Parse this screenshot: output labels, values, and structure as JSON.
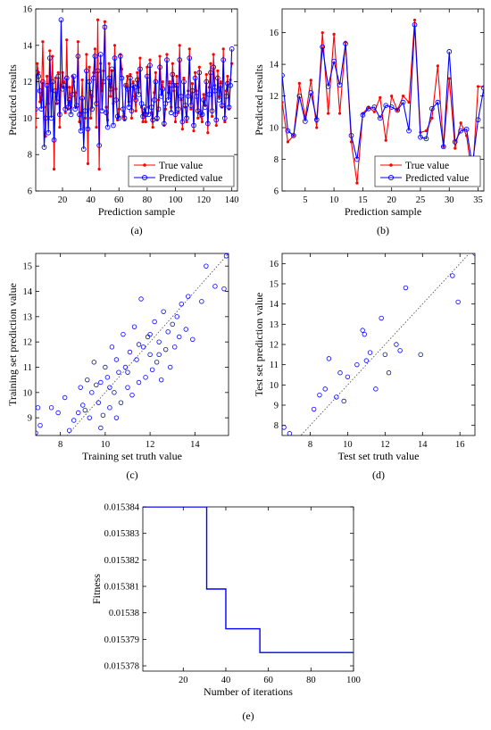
{
  "chart_data": [
    {
      "id": "a",
      "type": "line",
      "panel_label": "(a)",
      "xlabel": "Prediction sample",
      "ylabel": "Predicted results",
      "xlim": [
        1,
        144
      ],
      "ylim": [
        6,
        16
      ],
      "xticks": [
        20,
        40,
        60,
        80,
        100,
        120,
        140
      ],
      "yticks": [
        6,
        8,
        10,
        12,
        14,
        16
      ],
      "legend": "bottom-right",
      "series": [
        {
          "name": "True value",
          "color": "#ff0000",
          "marker": "dot",
          "values": [
            9.5,
            13.0,
            12.5,
            10.9,
            11.0,
            14.2,
            10.6,
            9.0,
            12.3,
            10.8,
            13.7,
            11.5,
            13.4,
            7.2,
            12.2,
            10.8,
            12.5,
            9.5,
            11.8,
            12.5,
            12.0,
            10.3,
            14.3,
            10.5,
            11.7,
            10.6,
            12.3,
            12.0,
            11.4,
            10.6,
            14.2,
            9.8,
            10.3,
            12.1,
            9.5,
            10.0,
            13.5,
            7.5,
            12.8,
            10.0,
            11.2,
            12.5,
            13.8,
            9.5,
            15.4,
            7.2,
            13.0,
            11.5,
            12.6,
            15.3,
            10.6,
            9.9,
            13.0,
            11.2,
            12.6,
            10.8,
            14.0,
            11.6,
            9.9,
            10.5,
            13.5,
            12.7,
            10.1,
            9.9,
            11.8,
            12.3,
            10.9,
            12.4,
            10.0,
            12.0,
            11.2,
            10.4,
            12.5,
            11.7,
            13.3,
            10.6,
            9.8,
            10.3,
            9.8,
            12.8,
            10.6,
            13.2,
            10.3,
            9.5,
            11.4,
            12.5,
            9.9,
            11.0,
            13.4,
            11.6,
            12.0,
            9.6,
            10.5,
            13.5,
            11.4,
            12.0,
            10.6,
            13.0,
            11.5,
            9.8,
            12.3,
            10.3,
            14.0,
            11.0,
            9.4,
            12.2,
            10.6,
            9.8,
            11.5,
            13.8,
            10.5,
            11.9,
            9.3,
            12.5,
            11.5,
            10.0,
            12.8,
            10.1,
            9.8,
            11.3,
            10.7,
            12.4,
            9.2,
            11.7,
            13.0,
            10.1,
            13.5,
            11.8,
            9.6,
            12.6,
            11.2,
            12.0,
            10.6,
            13.8,
            9.8,
            11.5,
            12.3,
            10.5,
            12.1,
            13.0
          ]
        },
        {
          "name": "Predicted value",
          "color": "#0000ff",
          "marker": "circle",
          "values": [
            10.5,
            12.5,
            12.3,
            11.5,
            10.5,
            12.0,
            8.4,
            10.0,
            11.8,
            9.2,
            13.3,
            10.0,
            12.0,
            8.8,
            11.5,
            10.9,
            12.3,
            10.2,
            15.4,
            11.6,
            11.8,
            10.5,
            12.2,
            10.6,
            11.0,
            10.2,
            11.3,
            12.3,
            10.5,
            10.7,
            13.4,
            10.2,
            9.3,
            11.1,
            8.3,
            10.4,
            12.6,
            9.4,
            12.0,
            11.4,
            10.5,
            12.2,
            13.4,
            10.8,
            12.6,
            8.5,
            13.5,
            10.4,
            12.0,
            15.0,
            10.3,
            9.5,
            12.2,
            11.6,
            12.7,
            9.6,
            13.3,
            11.0,
            10.1,
            10.0,
            13.4,
            12.2,
            10.5,
            10.0,
            11.8,
            11.6,
            10.6,
            12.2,
            10.4,
            11.8,
            11.7,
            11.0,
            12.1,
            11.3,
            12.7,
            10.8,
            10.1,
            10.6,
            10.2,
            12.3,
            10.2,
            12.9,
            10.6,
            9.9,
            11.0,
            12.0,
            10.0,
            10.5,
            12.8,
            11.2,
            11.6,
            9.7,
            10.8,
            13.2,
            11.0,
            11.8,
            10.3,
            12.4,
            11.8,
            10.2,
            11.8,
            10.5,
            13.2,
            11.2,
            9.8,
            12.0,
            10.7,
            10.0,
            11.2,
            13.3,
            10.7,
            11.5,
            9.6,
            12.2,
            11.2,
            10.4,
            12.5,
            10.3,
            10.2,
            11.0,
            10.6,
            12.0,
            9.7,
            11.3,
            12.5,
            10.4,
            12.8,
            11.5,
            9.9,
            12.2,
            11.0,
            11.8,
            10.7,
            13.2,
            10.0,
            11.2,
            11.9,
            10.6,
            11.8,
            13.8
          ]
        }
      ]
    },
    {
      "id": "b",
      "type": "line",
      "panel_label": "(b)",
      "xlabel": "Prediction sample",
      "ylabel": "Predicted results",
      "xlim": [
        1,
        36
      ],
      "ylim": [
        6,
        17.5
      ],
      "xticks": [
        5,
        10,
        15,
        20,
        25,
        30,
        35
      ],
      "yticks": [
        6,
        8,
        10,
        12,
        14,
        16
      ],
      "legend": "bottom-right",
      "series": [
        {
          "name": "True value",
          "color": "#ff0000",
          "marker": "dot",
          "values": [
            11.6,
            9.1,
            9.5,
            12.8,
            10.6,
            13.0,
            10.0,
            16.0,
            10.9,
            15.9,
            10.9,
            15.4,
            9.1,
            6.5,
            10.9,
            11.3,
            11.0,
            11.9,
            9.2,
            12.0,
            11.1,
            12.0,
            11.6,
            16.8,
            9.7,
            9.8,
            10.6,
            13.9,
            8.8,
            13.1,
            8.7,
            10.3,
            9.5,
            6.8,
            12.6,
            12.6
          ]
        },
        {
          "name": "Predicted value",
          "color": "#0000ff",
          "marker": "circle",
          "values": [
            13.3,
            9.8,
            9.5,
            12.0,
            10.4,
            12.2,
            10.5,
            15.1,
            12.6,
            14.2,
            12.7,
            15.3,
            9.5,
            8.0,
            10.8,
            11.2,
            11.3,
            10.6,
            11.4,
            11.3,
            11.1,
            11.6,
            9.8,
            16.5,
            9.4,
            9.3,
            11.2,
            11.6,
            8.8,
            14.8,
            9.1,
            9.8,
            9.9,
            7.6,
            10.5,
            12.5
          ]
        }
      ]
    },
    {
      "id": "c",
      "type": "scatter",
      "panel_label": "(c)",
      "xlabel": "Training set truth value",
      "ylabel": "Training set prediction value",
      "xlim": [
        6.9,
        15.5
      ],
      "ylim": [
        8.3,
        15.5
      ],
      "xticks": [
        8,
        10,
        12,
        14
      ],
      "yticks": [
        9,
        10,
        11,
        12,
        13,
        14,
        15
      ],
      "reference_line": [
        [
          6.9,
          6.9
        ],
        [
          15.5,
          15.5
        ]
      ],
      "series": [
        {
          "name": "",
          "color": "#0000ff",
          "marker": "circle",
          "points": [
            [
              6.9,
              8.4
            ],
            [
              7.1,
              8.7
            ],
            [
              7.0,
              9.4
            ],
            [
              7.6,
              9.4
            ],
            [
              7.9,
              9.2
            ],
            [
              8.2,
              9.8
            ],
            [
              8.4,
              8.5
            ],
            [
              8.6,
              8.9
            ],
            [
              8.8,
              9.2
            ],
            [
              8.9,
              10.2
            ],
            [
              9.0,
              9.5
            ],
            [
              9.1,
              9.3
            ],
            [
              9.2,
              10.5
            ],
            [
              9.3,
              9.0
            ],
            [
              9.4,
              10.0
            ],
            [
              9.5,
              11.2
            ],
            [
              9.6,
              10.3
            ],
            [
              9.7,
              9.6
            ],
            [
              9.8,
              10.4
            ],
            [
              9.9,
              9.1
            ],
            [
              10.0,
              11.0
            ],
            [
              10.1,
              10.6
            ],
            [
              10.2,
              9.4
            ],
            [
              10.3,
              11.8
            ],
            [
              10.4,
              10.0
            ],
            [
              10.5,
              11.3
            ],
            [
              10.6,
              10.8
            ],
            [
              10.7,
              9.6
            ],
            [
              10.8,
              12.3
            ],
            [
              10.9,
              11.0
            ],
            [
              11.0,
              10.2
            ],
            [
              11.1,
              11.6
            ],
            [
              11.2,
              9.9
            ],
            [
              11.3,
              12.6
            ],
            [
              11.4,
              11.3
            ],
            [
              11.5,
              10.4
            ],
            [
              11.6,
              13.7
            ],
            [
              11.7,
              11.8
            ],
            [
              11.8,
              10.6
            ],
            [
              11.9,
              12.2
            ],
            [
              12.0,
              11.5
            ],
            [
              12.1,
              10.9
            ],
            [
              12.2,
              12.8
            ],
            [
              12.3,
              11.2
            ],
            [
              12.4,
              12.0
            ],
            [
              12.5,
              10.5
            ],
            [
              12.6,
              13.2
            ],
            [
              12.7,
              11.7
            ],
            [
              12.8,
              12.4
            ],
            [
              12.9,
              11.0
            ],
            [
              13.0,
              12.7
            ],
            [
              13.1,
              11.8
            ],
            [
              13.2,
              13.0
            ],
            [
              13.3,
              12.2
            ],
            [
              13.4,
              13.5
            ],
            [
              13.6,
              12.5
            ],
            [
              13.7,
              13.8
            ],
            [
              13.9,
              12.1
            ],
            [
              14.3,
              13.6
            ],
            [
              14.5,
              15.0
            ],
            [
              14.9,
              14.2
            ],
            [
              15.3,
              14.1
            ],
            [
              15.4,
              15.4
            ],
            [
              9.8,
              8.6
            ],
            [
              10.5,
              9.0
            ],
            [
              11.0,
              10.8
            ],
            [
              12.0,
              12.3
            ],
            [
              11.5,
              11.9
            ],
            [
              12.4,
              11.5
            ],
            [
              10.2,
              10.2
            ]
          ]
        }
      ]
    },
    {
      "id": "d",
      "type": "scatter",
      "panel_label": "(d)",
      "xlabel": "Test set truth value",
      "ylabel": "Test set prediction value",
      "xlim": [
        6.5,
        16.8
      ],
      "ylim": [
        7.5,
        16.5
      ],
      "xticks": [
        8,
        10,
        12,
        14,
        16
      ],
      "yticks": [
        8,
        9,
        10,
        11,
        12,
        13,
        14,
        15,
        16
      ],
      "reference_line": [
        [
          6.5,
          6.5
        ],
        [
          16.8,
          16.8
        ]
      ],
      "series": [
        {
          "name": "",
          "color": "#0000ff",
          "marker": "circle",
          "points": [
            [
              6.6,
              7.9
            ],
            [
              6.9,
              7.6
            ],
            [
              8.2,
              8.8
            ],
            [
              8.5,
              9.5
            ],
            [
              8.8,
              9.8
            ],
            [
              9.0,
              11.3
            ],
            [
              9.4,
              9.4
            ],
            [
              9.6,
              10.6
            ],
            [
              9.8,
              9.2
            ],
            [
              10.0,
              10.4
            ],
            [
              10.5,
              11.0
            ],
            [
              10.8,
              12.7
            ],
            [
              10.9,
              12.5
            ],
            [
              11.0,
              11.2
            ],
            [
              11.2,
              11.6
            ],
            [
              11.5,
              9.8
            ],
            [
              11.8,
              13.3
            ],
            [
              12.0,
              11.5
            ],
            [
              12.2,
              10.6
            ],
            [
              12.6,
              12.0
            ],
            [
              12.8,
              11.7
            ],
            [
              13.1,
              14.8
            ],
            [
              13.9,
              11.5
            ],
            [
              15.6,
              15.4
            ],
            [
              15.9,
              14.1
            ],
            [
              16.8,
              16.5
            ]
          ]
        }
      ]
    },
    {
      "id": "e",
      "type": "line",
      "panel_label": "(e)",
      "xlabel": "Number of iterations",
      "ylabel": "Fitness",
      "xlim": [
        1,
        100
      ],
      "ylim": [
        0.0153778,
        0.015384
      ],
      "xticks": [
        20,
        40,
        60,
        80,
        100
      ],
      "yticks": [
        0.015378,
        0.015379,
        0.01538,
        0.015381,
        0.015382,
        0.015383,
        0.015384
      ],
      "ytick_labels": [
        "0.015378",
        "0.015379",
        "0.01538",
        "0.015381",
        "0.015382",
        "0.015383",
        "0.015384"
      ],
      "series": [
        {
          "name": "",
          "color": "#0000ff",
          "step": true,
          "points": [
            [
              1,
              0.015384
            ],
            [
              31,
              0.015384
            ],
            [
              31,
              0.0153809
            ],
            [
              40,
              0.0153809
            ],
            [
              40,
              0.0153794
            ],
            [
              56,
              0.0153794
            ],
            [
              56,
              0.0153785
            ],
            [
              100,
              0.0153785
            ]
          ]
        }
      ]
    }
  ]
}
